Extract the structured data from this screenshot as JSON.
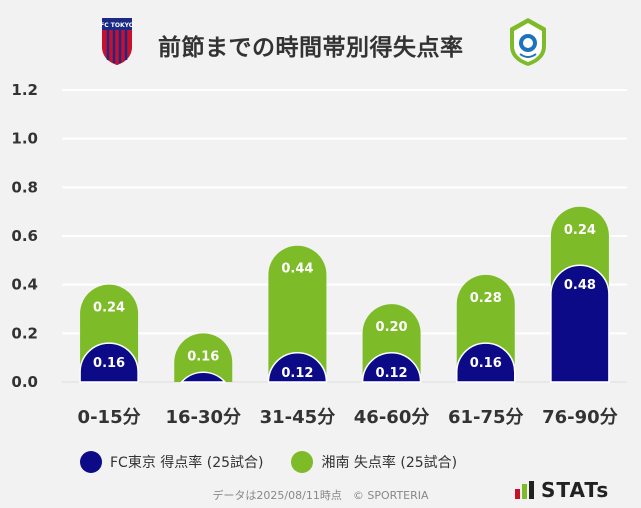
{
  "header": {
    "title": "前節までの時間帯別得失点率",
    "left_logo_text": "FC TOKYO"
  },
  "chart_data": {
    "type": "bar",
    "stacked": true,
    "categories": [
      "0-15分",
      "16-30分",
      "31-45分",
      "46-60分",
      "61-75分",
      "76-90分"
    ],
    "series": [
      {
        "name": "FC東京 得点率 (25試合)",
        "color": "#0c0a87",
        "values": [
          0.16,
          0.04,
          0.12,
          0.12,
          0.16,
          0.48
        ],
        "labels": [
          "0.16",
          "",
          "0.12",
          "0.12",
          "0.16",
          "0.48"
        ]
      },
      {
        "name": "湘南 失点率 (25試合)",
        "color": "#7dbb28",
        "values": [
          0.24,
          0.16,
          0.44,
          0.2,
          0.28,
          0.24
        ],
        "labels": [
          "0.24",
          "0.16",
          "0.44",
          "0.20",
          "0.28",
          "0.24"
        ]
      }
    ],
    "yticks": [
      "0.0",
      "0.2",
      "0.4",
      "0.6",
      "0.8",
      "1.0",
      "1.2"
    ],
    "ylim": [
      0,
      1.2
    ],
    "grid": true,
    "legend": "bottom"
  },
  "footer": {
    "note": "データは2025/08/11時点　© SPORTERIA",
    "brand": "STATs"
  }
}
